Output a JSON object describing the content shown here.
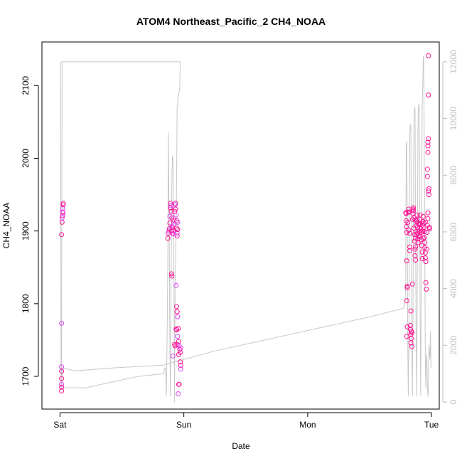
{
  "chart_data": {
    "type": "scatter",
    "title": "ATOM4 Northeast_Pacific_2 CH4_NOAA",
    "xlabel": "Date",
    "ylabel": "CH4_NOAA",
    "x_ticks": [
      "Sat",
      "Sun",
      "Mon",
      "Tue"
    ],
    "x_ticks_hours": [
      0,
      24,
      48,
      72
    ],
    "xlim_hours": [
      -3.5,
      73.5
    ],
    "ylim": [
      1655,
      2160
    ],
    "y_ticks": [
      1700,
      1800,
      1900,
      2000,
      2100
    ],
    "y2lim": [
      -250,
      12700
    ],
    "y2_ticks": [
      0,
      2000,
      4000,
      6000,
      8000,
      10000,
      12000
    ],
    "grid": false,
    "colors": {
      "points": "#ff1493",
      "points_alt": "#e040fb",
      "altitude_line": "#c8c8c8",
      "axes": "#000000",
      "secondary_axis": "#bdbdbd"
    },
    "series": [
      {
        "axis": "left",
        "points_hours_ch4": [
          [
            0.3,
            1713
          ],
          [
            0.3,
            1707
          ],
          [
            0.3,
            1697
          ],
          [
            0.3,
            1689
          ],
          [
            0.3,
            1685
          ],
          [
            0.3,
            1680
          ],
          [
            0.3,
            1773
          ],
          [
            0.3,
            1895
          ],
          [
            0.4,
            1912
          ],
          [
            0.4,
            1918
          ],
          [
            0.5,
            1921
          ],
          [
            0.5,
            1926
          ],
          [
            0.5,
            1931
          ],
          [
            0.6,
            1938
          ],
          [
            0.6,
            1936
          ],
          [
            0.6,
            1925
          ],
          [
            20.9,
            1890
          ],
          [
            21.0,
            1897
          ],
          [
            21.1,
            1900
          ],
          [
            21.2,
            1903
          ],
          [
            21.3,
            1911
          ],
          [
            21.3,
            1920
          ],
          [
            21.4,
            1932
          ],
          [
            21.4,
            1938
          ],
          [
            21.5,
            1935
          ],
          [
            21.6,
            1927
          ],
          [
            21.7,
            1918
          ],
          [
            21.7,
            1906
          ],
          [
            21.8,
            1897
          ],
          [
            21.9,
            1900
          ],
          [
            22.0,
            1908
          ],
          [
            22.1,
            1915
          ],
          [
            22.2,
            1927
          ],
          [
            22.3,
            1936
          ],
          [
            22.4,
            1938
          ],
          [
            22.4,
            1930
          ],
          [
            22.5,
            1922
          ],
          [
            22.6,
            1914
          ],
          [
            22.6,
            1904
          ],
          [
            22.7,
            1897
          ],
          [
            22.7,
            1893
          ],
          [
            22.8,
            1902
          ],
          [
            22.8,
            1912
          ],
          [
            21.6,
            1900
          ],
          [
            21.8,
            1905
          ],
          [
            22.0,
            1896
          ],
          [
            21.6,
            1841
          ],
          [
            21.7,
            1838
          ],
          [
            22.5,
            1825
          ],
          [
            22.6,
            1796
          ],
          [
            22.7,
            1789
          ],
          [
            22.8,
            1782
          ],
          [
            22.9,
            1766
          ],
          [
            22.6,
            1764
          ],
          [
            22.8,
            1755
          ],
          [
            23.0,
            1748
          ],
          [
            22.7,
            1744
          ],
          [
            23.1,
            1742
          ],
          [
            23.2,
            1737
          ],
          [
            23.3,
            1733
          ],
          [
            23.4,
            1739
          ],
          [
            23.3,
            1720
          ],
          [
            23.4,
            1715
          ],
          [
            23.4,
            1710
          ],
          [
            23.0,
            1689
          ],
          [
            23.1,
            1689
          ],
          [
            22.9,
            1676
          ],
          [
            22.5,
            1765
          ],
          [
            22.3,
            1742
          ],
          [
            21.9,
            1728
          ],
          [
            22.2,
            1744
          ],
          [
            23.0,
            1730
          ],
          [
            67.0,
            1925
          ],
          [
            67.1,
            1924
          ],
          [
            67.1,
            1914
          ],
          [
            67.1,
            1906
          ],
          [
            67.2,
            1898
          ],
          [
            67.2,
            1859
          ],
          [
            67.3,
            1824
          ],
          [
            67.3,
            1822
          ],
          [
            67.2,
            1804
          ],
          [
            67.3,
            1768
          ],
          [
            67.2,
            1755
          ],
          [
            67.4,
            1912
          ],
          [
            67.5,
            1926
          ],
          [
            67.6,
            1930
          ],
          [
            67.7,
            1926
          ],
          [
            67.6,
            1901
          ],
          [
            67.8,
            1897
          ],
          [
            67.8,
            1878
          ],
          [
            67.8,
            1873
          ],
          [
            67.9,
            1770
          ],
          [
            67.9,
            1765
          ],
          [
            68.0,
            1758
          ],
          [
            68.1,
            1752
          ],
          [
            68.0,
            1746
          ],
          [
            68.2,
            1741
          ],
          [
            68.1,
            1762
          ],
          [
            68.2,
            1760
          ],
          [
            68.0,
            1790
          ],
          [
            68.3,
            1827
          ],
          [
            68.3,
            1916
          ],
          [
            68.4,
            1924
          ],
          [
            68.4,
            1930
          ],
          [
            68.5,
            1932
          ],
          [
            68.5,
            1928
          ],
          [
            68.6,
            1918
          ],
          [
            68.6,
            1904
          ],
          [
            68.7,
            1895
          ],
          [
            68.7,
            1886
          ],
          [
            68.8,
            1875
          ],
          [
            68.8,
            1866
          ],
          [
            68.9,
            1860
          ],
          [
            68.9,
            1878
          ],
          [
            68.9,
            1890
          ],
          [
            69.0,
            1899
          ],
          [
            69.0,
            1907
          ],
          [
            69.1,
            1915
          ],
          [
            69.2,
            1922
          ],
          [
            69.2,
            1912
          ],
          [
            69.3,
            1905
          ],
          [
            69.3,
            1897
          ],
          [
            69.4,
            1889
          ],
          [
            69.4,
            1884
          ],
          [
            69.5,
            1892
          ],
          [
            69.6,
            1900
          ],
          [
            69.6,
            1909
          ],
          [
            69.7,
            1916
          ],
          [
            69.8,
            1922
          ],
          [
            69.8,
            1910
          ],
          [
            69.9,
            1903
          ],
          [
            70.0,
            1898
          ],
          [
            70.0,
            1888
          ],
          [
            70.1,
            1880
          ],
          [
            70.2,
            1871
          ],
          [
            70.2,
            1862
          ],
          [
            70.3,
            1900
          ],
          [
            70.3,
            1913
          ],
          [
            70.4,
            1920
          ],
          [
            70.5,
            1911
          ],
          [
            70.5,
            1905
          ],
          [
            70.6,
            1899
          ],
          [
            70.6,
            1891
          ],
          [
            70.7,
            1884
          ],
          [
            70.7,
            1877
          ],
          [
            70.8,
            1870
          ],
          [
            70.8,
            1863
          ],
          [
            70.9,
            1858
          ],
          [
            70.9,
            1829
          ],
          [
            71.0,
            1820
          ],
          [
            71.1,
            1875
          ],
          [
            71.1,
            1898
          ],
          [
            71.2,
            1908
          ],
          [
            71.3,
            1917
          ],
          [
            71.3,
            1925
          ],
          [
            71.2,
            1985
          ],
          [
            71.2,
            1975
          ],
          [
            71.3,
            2008
          ],
          [
            71.3,
            2017
          ],
          [
            71.3,
            2022
          ],
          [
            71.4,
            2027
          ],
          [
            71.4,
            2087
          ],
          [
            71.4,
            2141
          ],
          [
            71.4,
            1955
          ],
          [
            71.5,
            1950
          ],
          [
            71.5,
            1958
          ],
          [
            71.6,
            1905
          ],
          [
            71.6,
            1903
          ],
          [
            70.4,
            1890
          ],
          [
            70.1,
            1900
          ],
          [
            69.5,
            1910
          ],
          [
            68.8,
            1915
          ],
          [
            69.7,
            1893
          ],
          [
            70.8,
            1912
          ],
          [
            70.2,
            1908
          ],
          [
            69.1,
            1895
          ]
        ]
      },
      {
        "axis": "right",
        "line_hours_altitude_m": [
          [
            0.0,
            12000
          ],
          [
            0.1,
            12000
          ],
          [
            0.2,
            400
          ],
          [
            0.3,
            600
          ],
          [
            0.4,
            12000
          ],
          [
            5.0,
            12000
          ],
          [
            10.0,
            12000
          ],
          [
            15.0,
            12000
          ],
          [
            20.0,
            12000
          ],
          [
            23.0,
            12000
          ],
          [
            23.3,
            12000
          ],
          [
            23.2,
            11000
          ],
          [
            22.9,
            10800
          ],
          [
            22.8,
            10500
          ],
          [
            22.7,
            10400
          ],
          [
            22.6,
            8000
          ],
          [
            22.5,
            6000
          ],
          [
            22.4,
            5000
          ],
          [
            22.3,
            4000
          ],
          [
            22.2,
            0
          ],
          [
            22.1,
            4000
          ],
          [
            21.9,
            8500
          ],
          [
            21.8,
            8700
          ],
          [
            21.7,
            8000
          ],
          [
            21.6,
            6000
          ],
          [
            21.5,
            3000
          ],
          [
            21.4,
            200
          ],
          [
            21.3,
            2000
          ],
          [
            21.2,
            5000
          ],
          [
            21.1,
            7500
          ],
          [
            21.0,
            9500
          ],
          [
            20.9,
            5000
          ],
          [
            20.8,
            3000
          ],
          [
            20.7,
            1500
          ],
          [
            20.6,
            200
          ],
          [
            20.5,
            1000
          ],
          [
            20.4,
            1200
          ],
          [
            20.3,
            1200
          ],
          [
            20.2,
            1100
          ],
          [
            20.1,
            1000
          ],
          [
            20.0,
            1000
          ],
          [
            15.0,
            900
          ],
          [
            10.0,
            700
          ],
          [
            5.0,
            500
          ],
          [
            0.3,
            500
          ],
          [
            0.5,
            1200
          ],
          [
            3.0,
            1100
          ],
          [
            10.0,
            1200
          ],
          [
            20.0,
            1300
          ],
          [
            30.0,
            1800
          ],
          [
            40.0,
            2200
          ],
          [
            50.0,
            2600
          ],
          [
            60.0,
            3000
          ],
          [
            66.5,
            3300
          ],
          [
            66.8,
            3400
          ],
          [
            67.0,
            4000
          ],
          [
            67.1,
            9000
          ],
          [
            67.2,
            9200
          ],
          [
            67.3,
            6000
          ],
          [
            67.4,
            2000
          ],
          [
            67.5,
            200
          ],
          [
            67.6,
            2000
          ],
          [
            67.7,
            7000
          ],
          [
            67.8,
            9500
          ],
          [
            67.9,
            9800
          ],
          [
            68.0,
            9700
          ],
          [
            68.1,
            6000
          ],
          [
            68.2,
            2000
          ],
          [
            68.3,
            200
          ],
          [
            68.4,
            3000
          ],
          [
            68.5,
            7000
          ],
          [
            68.6,
            10000
          ],
          [
            68.7,
            10300
          ],
          [
            68.8,
            10400
          ],
          [
            68.9,
            6000
          ],
          [
            69.0,
            3000
          ],
          [
            69.1,
            200
          ],
          [
            69.2,
            3000
          ],
          [
            69.3,
            7000
          ],
          [
            69.4,
            10000
          ],
          [
            69.5,
            10500
          ],
          [
            69.6,
            10400
          ],
          [
            69.7,
            7000
          ],
          [
            69.8,
            3000
          ],
          [
            69.9,
            200
          ],
          [
            70.0,
            4000
          ],
          [
            70.1,
            8000
          ],
          [
            70.2,
            10500
          ],
          [
            70.3,
            11200
          ],
          [
            70.4,
            12200
          ],
          [
            70.5,
            12100
          ],
          [
            70.6,
            9000
          ],
          [
            70.7,
            5000
          ],
          [
            70.8,
            1500
          ],
          [
            70.9,
            500
          ],
          [
            71.0,
            1700
          ],
          [
            71.1,
            1500
          ],
          [
            71.2,
            600
          ],
          [
            71.3,
            200
          ],
          [
            71.4,
            500
          ],
          [
            71.5,
            2000
          ],
          [
            71.6,
            1800
          ],
          [
            71.7,
            1500
          ],
          [
            71.8,
            2500
          ],
          [
            71.9,
            1200
          ]
        ]
      }
    ]
  }
}
